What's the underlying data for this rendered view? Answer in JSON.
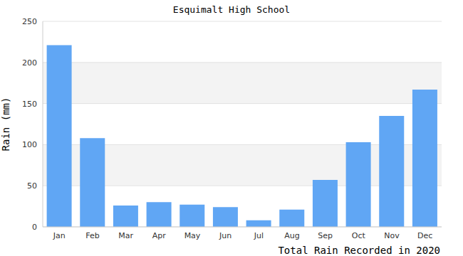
{
  "chart_data": {
    "type": "bar",
    "title": "Esquimalt High School",
    "x_label": "Total Rain Recorded in 2020",
    "y_label": "Rain (mm)",
    "categories": [
      "Jan",
      "Feb",
      "Mar",
      "Apr",
      "May",
      "Jun",
      "Jul",
      "Aug",
      "Sep",
      "Oct",
      "Nov",
      "Dec"
    ],
    "values": [
      221,
      108,
      26,
      30,
      27,
      24,
      8,
      21,
      57,
      103,
      135,
      167
    ],
    "color": "#60a6f4",
    "ylim": [
      0,
      250
    ],
    "yticks": [
      0,
      50,
      100,
      150,
      200,
      250
    ],
    "grid": true
  }
}
